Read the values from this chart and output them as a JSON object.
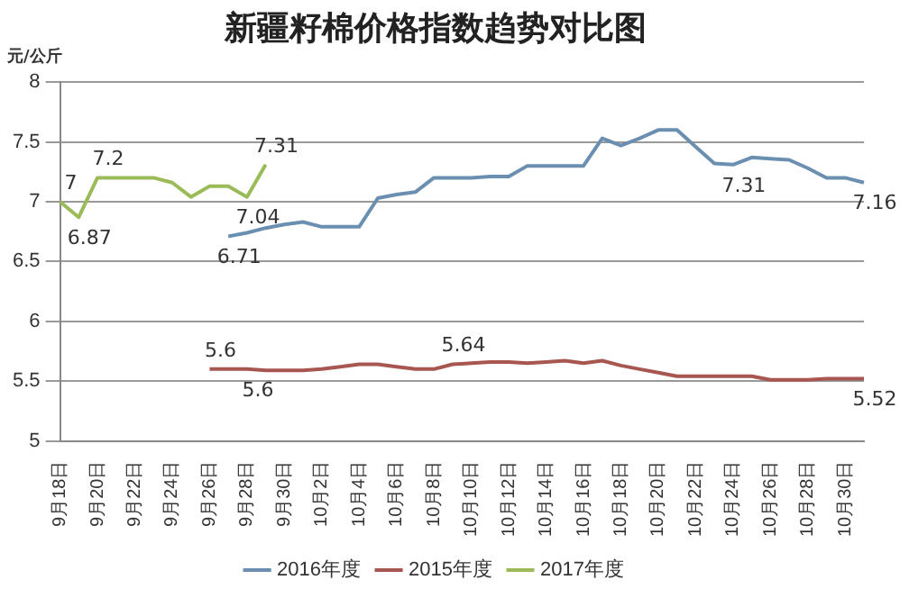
{
  "chart_data": {
    "type": "line",
    "title": "新疆籽棉价格指数趋势对比图",
    "ylabel": "元/公斤",
    "categories": [
      "9月18日",
      null,
      "9月20日",
      null,
      "9月22日",
      null,
      "9月24日",
      null,
      "9月26日",
      null,
      "9月28日",
      null,
      "9月30日",
      null,
      "10月2日",
      null,
      "10月4日",
      null,
      "10月6日",
      null,
      "10月8日",
      null,
      "10月10日",
      null,
      "10月12日",
      null,
      "10月14日",
      null,
      "10月16日",
      null,
      "10月18日",
      null,
      "10月20日",
      null,
      "10月22日",
      null,
      "10月24日",
      null,
      "10月26日",
      null,
      "10月28日",
      null,
      "10月30日",
      null
    ],
    "series": [
      {
        "name": "2016年度",
        "color": "#6b8fb0",
        "values": [
          null,
          null,
          null,
          null,
          null,
          null,
          null,
          null,
          null,
          6.71,
          6.74,
          6.78,
          6.81,
          6.83,
          6.79,
          6.79,
          6.79,
          7.03,
          7.06,
          7.08,
          7.2,
          7.2,
          7.2,
          7.21,
          7.21,
          7.3,
          7.3,
          7.3,
          7.3,
          7.53,
          7.47,
          7.53,
          7.6,
          7.6,
          7.46,
          7.32,
          7.31,
          7.37,
          7.36,
          7.35,
          7.28,
          7.2,
          7.2,
          7.16
        ],
        "value_labels": [
          null,
          null,
          null,
          null,
          null,
          null,
          null,
          null,
          null,
          "6.71",
          null,
          null,
          null,
          null,
          null,
          null,
          null,
          null,
          null,
          null,
          null,
          null,
          null,
          null,
          null,
          null,
          null,
          null,
          null,
          null,
          null,
          null,
          null,
          null,
          null,
          null,
          "7.31",
          null,
          null,
          null,
          null,
          null,
          null,
          "7.16"
        ]
      },
      {
        "name": "2015年度",
        "color": "#a85650",
        "values": [
          null,
          null,
          null,
          null,
          null,
          null,
          null,
          null,
          5.6,
          5.6,
          5.6,
          5.59,
          5.59,
          5.59,
          5.6,
          5.62,
          5.64,
          5.64,
          5.62,
          5.6,
          5.6,
          5.64,
          5.65,
          5.66,
          5.66,
          5.65,
          5.66,
          5.67,
          5.65,
          5.67,
          5.63,
          5.6,
          5.57,
          5.54,
          5.54,
          5.54,
          5.54,
          5.54,
          5.51,
          5.51,
          5.51,
          5.52,
          5.52,
          5.52
        ],
        "value_labels": [
          null,
          null,
          null,
          null,
          null,
          null,
          null,
          null,
          "5.6",
          null,
          "5.6",
          null,
          null,
          null,
          null,
          null,
          null,
          null,
          null,
          null,
          null,
          "5.64",
          null,
          null,
          null,
          null,
          null,
          null,
          null,
          null,
          null,
          null,
          null,
          null,
          null,
          null,
          null,
          null,
          null,
          null,
          null,
          null,
          null,
          "5.52"
        ]
      },
      {
        "name": "2017年度",
        "color": "#9bbb59",
        "values": [
          7,
          6.87,
          7.2,
          7.2,
          7.2,
          7.2,
          7.16,
          7.04,
          7.13,
          7.13,
          7.04,
          7.31,
          null,
          null,
          null,
          null,
          null,
          null,
          null,
          null,
          null,
          null,
          null,
          null,
          null,
          null,
          null,
          null,
          null,
          null,
          null,
          null,
          null,
          null,
          null,
          null,
          null,
          null,
          null,
          null,
          null,
          null,
          null,
          null
        ],
        "value_labels": [
          "7",
          "6.87",
          "7.2",
          null,
          null,
          null,
          null,
          null,
          null,
          null,
          "7.04",
          "7.31",
          null,
          null,
          null,
          null,
          null,
          null,
          null,
          null,
          null,
          null,
          null,
          null,
          null,
          null,
          null,
          null,
          null,
          null,
          null,
          null,
          null,
          null,
          null,
          null,
          null,
          null,
          null,
          null,
          null,
          null,
          null,
          null
        ]
      }
    ],
    "ylim": [
      5,
      8
    ],
    "yticks": [
      5,
      5.5,
      6,
      6.5,
      7,
      7.5,
      8
    ],
    "grid": "y",
    "legend": "bottom",
    "marker": "none",
    "line_style": "solid"
  }
}
